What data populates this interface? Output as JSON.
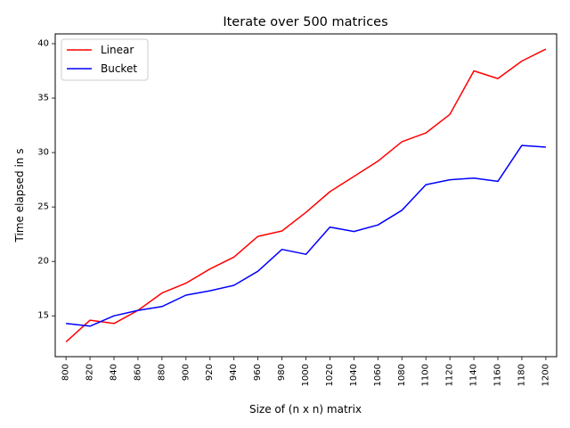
{
  "chart_data": {
    "type": "line",
    "title": "Iterate over 500 matrices",
    "xlabel": "Size of (n x n) matrix",
    "ylabel": "Time elapsed in s",
    "x": [
      800,
      820,
      840,
      860,
      880,
      900,
      920,
      940,
      960,
      980,
      1000,
      1020,
      1040,
      1060,
      1080,
      1100,
      1120,
      1140,
      1160,
      1180,
      1200
    ],
    "xticks": [
      "800",
      "820",
      "840",
      "860",
      "880",
      "900",
      "920",
      "940",
      "960",
      "980",
      "1000",
      "1020",
      "1040",
      "1060",
      "1080",
      "1100",
      "1120",
      "1140",
      "1160",
      "1180",
      "1200"
    ],
    "yticks": [
      15,
      20,
      25,
      30,
      35,
      40
    ],
    "xlim": [
      791,
      1209
    ],
    "ylim": [
      11.25,
      40.9
    ],
    "grid": false,
    "legend_position": "upper left",
    "series": [
      {
        "name": "Linear",
        "color": "#ff0000",
        "values": [
          12.6,
          14.6,
          14.3,
          15.5,
          17.1,
          18.0,
          19.3,
          20.4,
          22.3,
          22.8,
          24.5,
          26.4,
          27.8,
          29.2,
          31.0,
          31.8,
          33.5,
          37.5,
          36.8,
          38.4,
          39.5
        ]
      },
      {
        "name": "Bucket",
        "color": "#0000ff",
        "values": [
          14.3,
          14.05,
          15.0,
          15.5,
          15.85,
          16.9,
          17.3,
          17.8,
          19.1,
          21.1,
          20.65,
          23.15,
          22.75,
          23.35,
          24.7,
          27.05,
          27.5,
          27.65,
          27.35,
          30.65,
          30.5
        ]
      }
    ]
  }
}
